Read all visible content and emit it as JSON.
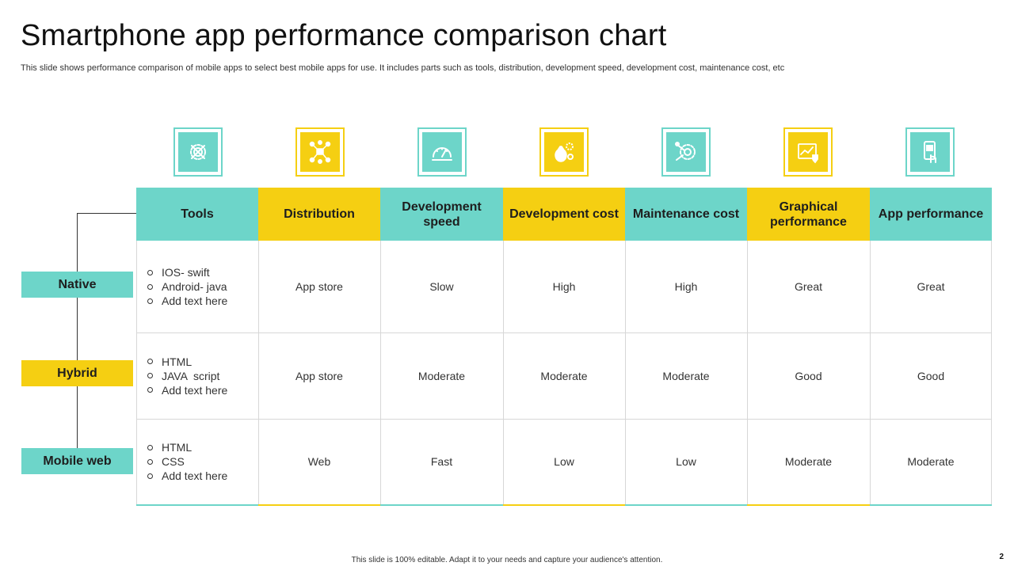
{
  "title": "Smartphone app performance comparison chart",
  "subtitle": "This slide shows performance comparison of mobile apps to select best mobile apps for use. It includes parts such as tools, distribution, development speed, development cost, maintenance cost, etc",
  "colors": {
    "teal": "#6dd5c9",
    "yellow": "#f5cf12"
  },
  "icons": [
    "wrench-gear-icon",
    "network-distribution-icon",
    "speedometer-icon",
    "money-bag-gear-icon",
    "gear-maintenance-icon",
    "chart-shield-icon",
    "smartphone-touch-icon"
  ],
  "columns": [
    "Tools",
    "Distribution",
    "Development speed",
    "Development cost",
    "Maintenance cost",
    "Graphical performance",
    "App performance"
  ],
  "rows": [
    {
      "label": "Native",
      "tools": [
        "IOS- swift",
        "Android- java",
        "Add text here"
      ],
      "values": [
        "App store",
        "Slow",
        "High",
        "High",
        "Great",
        "Great"
      ]
    },
    {
      "label": "Hybrid",
      "tools": [
        "HTML",
        "JAVA  script",
        "Add text here"
      ],
      "values": [
        "App store",
        "Moderate",
        "Moderate",
        "Moderate",
        "Good",
        "Good"
      ]
    },
    {
      "label": "Mobile web",
      "tools": [
        "HTML",
        "CSS",
        "Add text here"
      ],
      "values": [
        "Web",
        "Fast",
        "Low",
        "Low",
        "Moderate",
        "Moderate"
      ]
    }
  ],
  "footer": "This slide is 100% editable.  Adapt it to your needs and capture your audience's attention.",
  "page_number": "2"
}
